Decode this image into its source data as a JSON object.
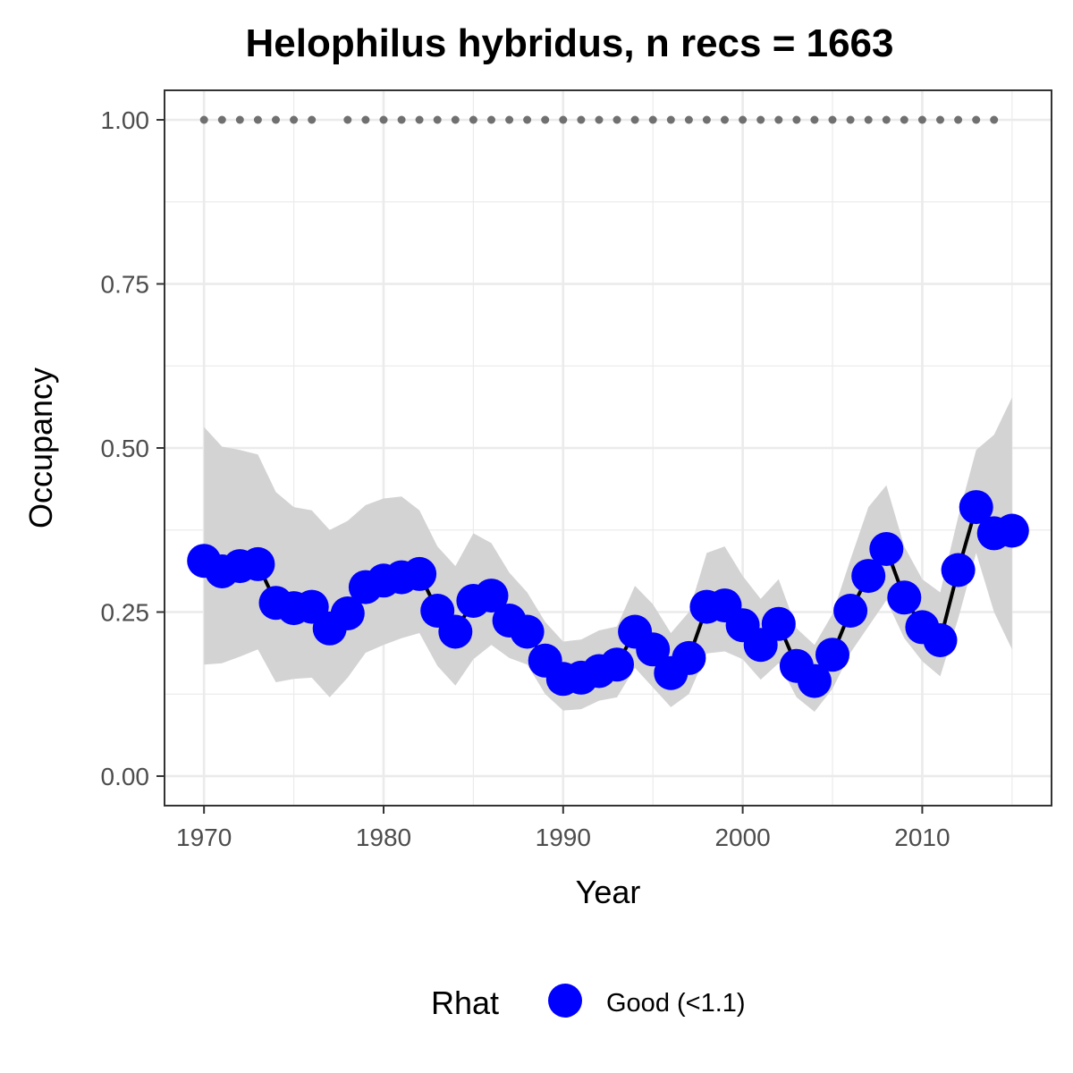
{
  "chart_data": {
    "type": "line",
    "title": "Helophilus hybridus, n recs = 1663",
    "xlabel": "Year",
    "ylabel": "Occupancy",
    "xlim": [
      1967.8,
      2017.2
    ],
    "ylim": [
      -0.045,
      1.045
    ],
    "x_ticks": [
      1970,
      1980,
      1990,
      2000,
      2010
    ],
    "x_tick_labels": [
      "1970",
      "1980",
      "1990",
      "2000",
      "2010"
    ],
    "y_ticks": [
      0,
      0.25,
      0.5,
      0.75,
      1.0
    ],
    "y_tick_labels": [
      "0.00",
      "0.25",
      "0.50",
      "0.75",
      "1.00"
    ],
    "grid": true,
    "legend": {
      "title": "Rhat",
      "position": "bottom",
      "entries": [
        {
          "label": "Good (<1.1)",
          "color": "#0000ff"
        }
      ]
    },
    "colors": {
      "points": "#0000ff",
      "line": "#000000",
      "ribbon": "#d3d3d3",
      "record_dots": "#707070",
      "panel_border": "#333333",
      "grid_major": "#ebebeb"
    },
    "x": [
      1970,
      1971,
      1972,
      1973,
      1974,
      1975,
      1976,
      1977,
      1978,
      1979,
      1980,
      1981,
      1982,
      1983,
      1984,
      1985,
      1986,
      1987,
      1988,
      1989,
      1990,
      1991,
      1992,
      1993,
      1994,
      1995,
      1996,
      1997,
      1998,
      1999,
      2000,
      2001,
      2002,
      2003,
      2004,
      2005,
      2006,
      2007,
      2008,
      2009,
      2010,
      2011,
      2012,
      2013,
      2014,
      2015
    ],
    "series": [
      {
        "values": [
          0.328,
          0.312,
          0.32,
          0.323,
          0.264,
          0.256,
          0.258,
          0.225,
          0.248,
          0.288,
          0.298,
          0.303,
          0.308,
          0.252,
          0.22,
          0.267,
          0.275,
          0.237,
          0.22,
          0.176,
          0.148,
          0.15,
          0.16,
          0.17,
          0.22,
          0.193,
          0.157,
          0.18,
          0.258,
          0.26,
          0.23,
          0.2,
          0.232,
          0.168,
          0.145,
          0.185,
          0.252,
          0.305,
          0.346,
          0.272,
          0.227,
          0.207,
          0.314,
          0.41,
          0.37,
          0.374
        ],
        "lower": [
          0.17,
          0.172,
          0.182,
          0.193,
          0.143,
          0.148,
          0.15,
          0.12,
          0.15,
          0.188,
          0.2,
          0.21,
          0.218,
          0.168,
          0.138,
          0.178,
          0.2,
          0.18,
          0.17,
          0.125,
          0.1,
          0.102,
          0.115,
          0.12,
          0.165,
          0.135,
          0.105,
          0.125,
          0.187,
          0.19,
          0.178,
          0.147,
          0.172,
          0.12,
          0.098,
          0.133,
          0.188,
          0.228,
          0.268,
          0.21,
          0.175,
          0.152,
          0.24,
          0.34,
          0.25,
          0.193
        ],
        "upper": [
          0.532,
          0.502,
          0.497,
          0.49,
          0.433,
          0.41,
          0.405,
          0.375,
          0.389,
          0.413,
          0.423,
          0.426,
          0.405,
          0.35,
          0.32,
          0.37,
          0.355,
          0.31,
          0.28,
          0.235,
          0.205,
          0.208,
          0.222,
          0.228,
          0.29,
          0.262,
          0.218,
          0.25,
          0.34,
          0.35,
          0.305,
          0.27,
          0.3,
          0.225,
          0.2,
          0.247,
          0.33,
          0.41,
          0.443,
          0.35,
          0.3,
          0.28,
          0.395,
          0.497,
          0.52,
          0.577
        ]
      }
    ],
    "record_years": [
      1970,
      1971,
      1972,
      1973,
      1974,
      1975,
      1976,
      1978,
      1979,
      1980,
      1981,
      1982,
      1983,
      1984,
      1985,
      1986,
      1987,
      1988,
      1989,
      1990,
      1991,
      1992,
      1993,
      1994,
      1995,
      1996,
      1997,
      1998,
      1999,
      2000,
      2001,
      2002,
      2003,
      2004,
      2005,
      2006,
      2007,
      2008,
      2009,
      2010,
      2011,
      2012,
      2013,
      2014
    ],
    "record_level": 1.0
  }
}
